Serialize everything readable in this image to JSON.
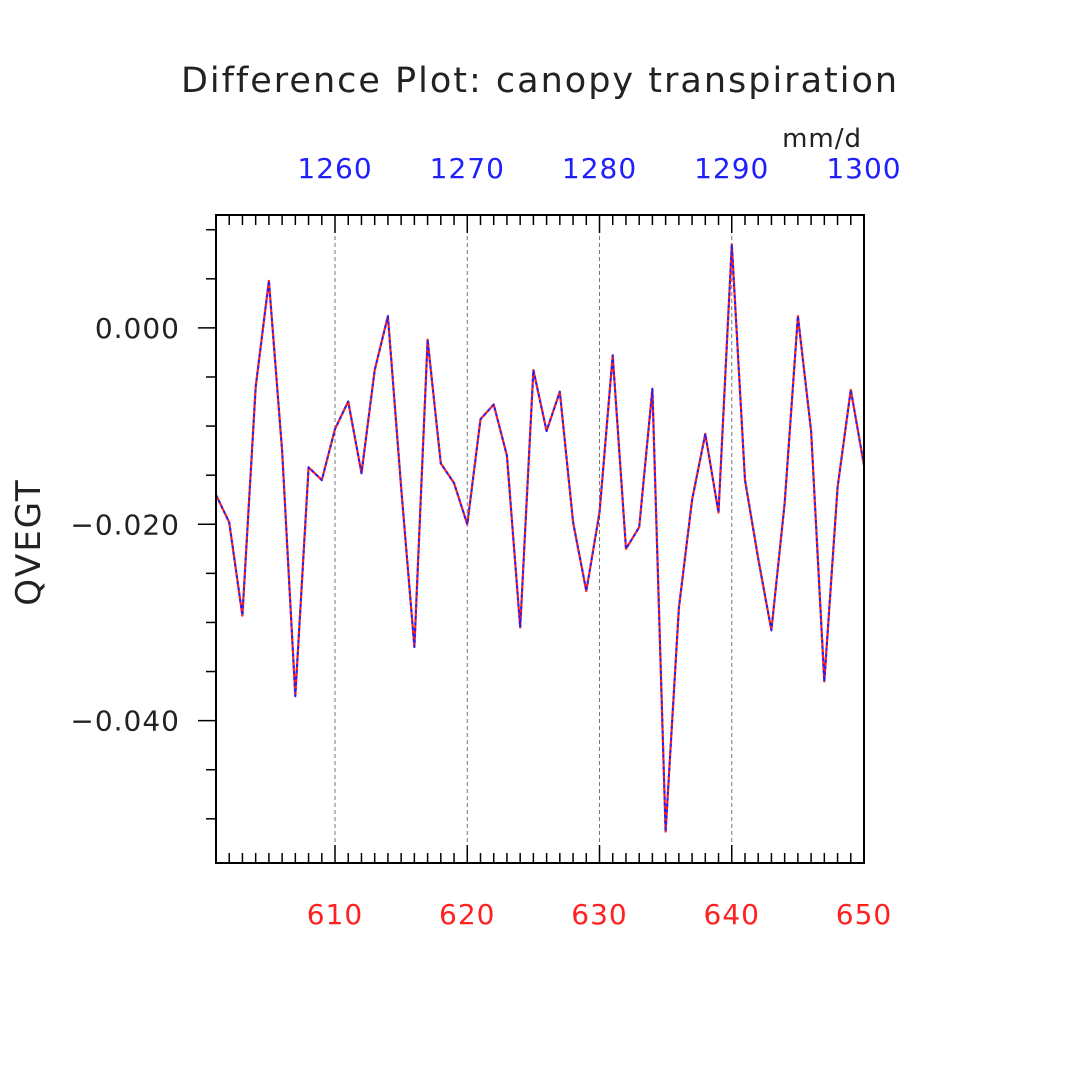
{
  "chart_data": {
    "type": "line",
    "title": "Difference Plot: canopy transpiration",
    "units": "mm/d",
    "ylabel": "QVEGT",
    "xlim": [
      601,
      650
    ],
    "ylim": [
      -0.0545,
      0.0115
    ],
    "x_ticks": [
      610,
      620,
      630,
      640,
      650
    ],
    "x2_ticks": [
      1260,
      1270,
      1280,
      1290,
      1300
    ],
    "x2_offset": 650,
    "y_ticks": [
      "0.000",
      "−0.020",
      "−0.040"
    ],
    "y_tick_values": [
      0.0,
      -0.02,
      -0.04
    ],
    "x_tick_color": "#ff2020",
    "x2_tick_color": "#2020ff",
    "vertical_grid": "dashed",
    "series": [
      {
        "color": "#ff2020",
        "style": "solid",
        "x": [
          601,
          602,
          603,
          604,
          605,
          606,
          607,
          608,
          609,
          610,
          611,
          612,
          613,
          614,
          615,
          616,
          617,
          618,
          619,
          620,
          621,
          622,
          623,
          624,
          625,
          626,
          627,
          628,
          629,
          630,
          631,
          632,
          633,
          634,
          635,
          636,
          637,
          638,
          639,
          640,
          641,
          642,
          643,
          644,
          645,
          646,
          647,
          648,
          649,
          650
        ],
        "values": [
          -0.017,
          -0.0198,
          -0.0293,
          -0.006,
          0.0048,
          -0.0125,
          -0.0375,
          -0.0142,
          -0.0155,
          -0.0103,
          -0.0075,
          -0.0148,
          -0.0043,
          0.0012,
          -0.0162,
          -0.0325,
          -0.0012,
          -0.0138,
          -0.0158,
          -0.02,
          -0.0093,
          -0.0078,
          -0.013,
          -0.0305,
          -0.0043,
          -0.0105,
          -0.0065,
          -0.0198,
          -0.0268,
          -0.0188,
          -0.0028,
          -0.0225,
          -0.0203,
          -0.0062,
          -0.0513,
          -0.0285,
          -0.0175,
          -0.0108,
          -0.0188,
          0.0085,
          -0.0155,
          -0.0235,
          -0.0308,
          -0.0178,
          0.0012,
          -0.0105,
          -0.036,
          -0.0162,
          -0.0063,
          -0.014
        ]
      },
      {
        "color": "#2020ff",
        "style": "dashed",
        "x": [
          601,
          602,
          603,
          604,
          605,
          606,
          607,
          608,
          609,
          610,
          611,
          612,
          613,
          614,
          615,
          616,
          617,
          618,
          619,
          620,
          621,
          622,
          623,
          624,
          625,
          626,
          627,
          628,
          629,
          630,
          631,
          632,
          633,
          634,
          635,
          636,
          637,
          638,
          639,
          640,
          641,
          642,
          643,
          644,
          645,
          646,
          647,
          648,
          649,
          650
        ],
        "values": [
          -0.017,
          -0.0198,
          -0.0293,
          -0.006,
          0.0048,
          -0.0125,
          -0.0375,
          -0.0142,
          -0.0155,
          -0.0103,
          -0.0075,
          -0.0148,
          -0.0043,
          0.0012,
          -0.0162,
          -0.0325,
          -0.0012,
          -0.0138,
          -0.0158,
          -0.02,
          -0.0093,
          -0.0078,
          -0.013,
          -0.0305,
          -0.0043,
          -0.0105,
          -0.0065,
          -0.0198,
          -0.0268,
          -0.0188,
          -0.0028,
          -0.0225,
          -0.0203,
          -0.0062,
          -0.0513,
          -0.0285,
          -0.0175,
          -0.0108,
          -0.0188,
          0.0085,
          -0.0155,
          -0.0235,
          -0.0308,
          -0.0178,
          0.0012,
          -0.0105,
          -0.036,
          -0.0162,
          -0.0063,
          -0.014
        ]
      }
    ]
  }
}
